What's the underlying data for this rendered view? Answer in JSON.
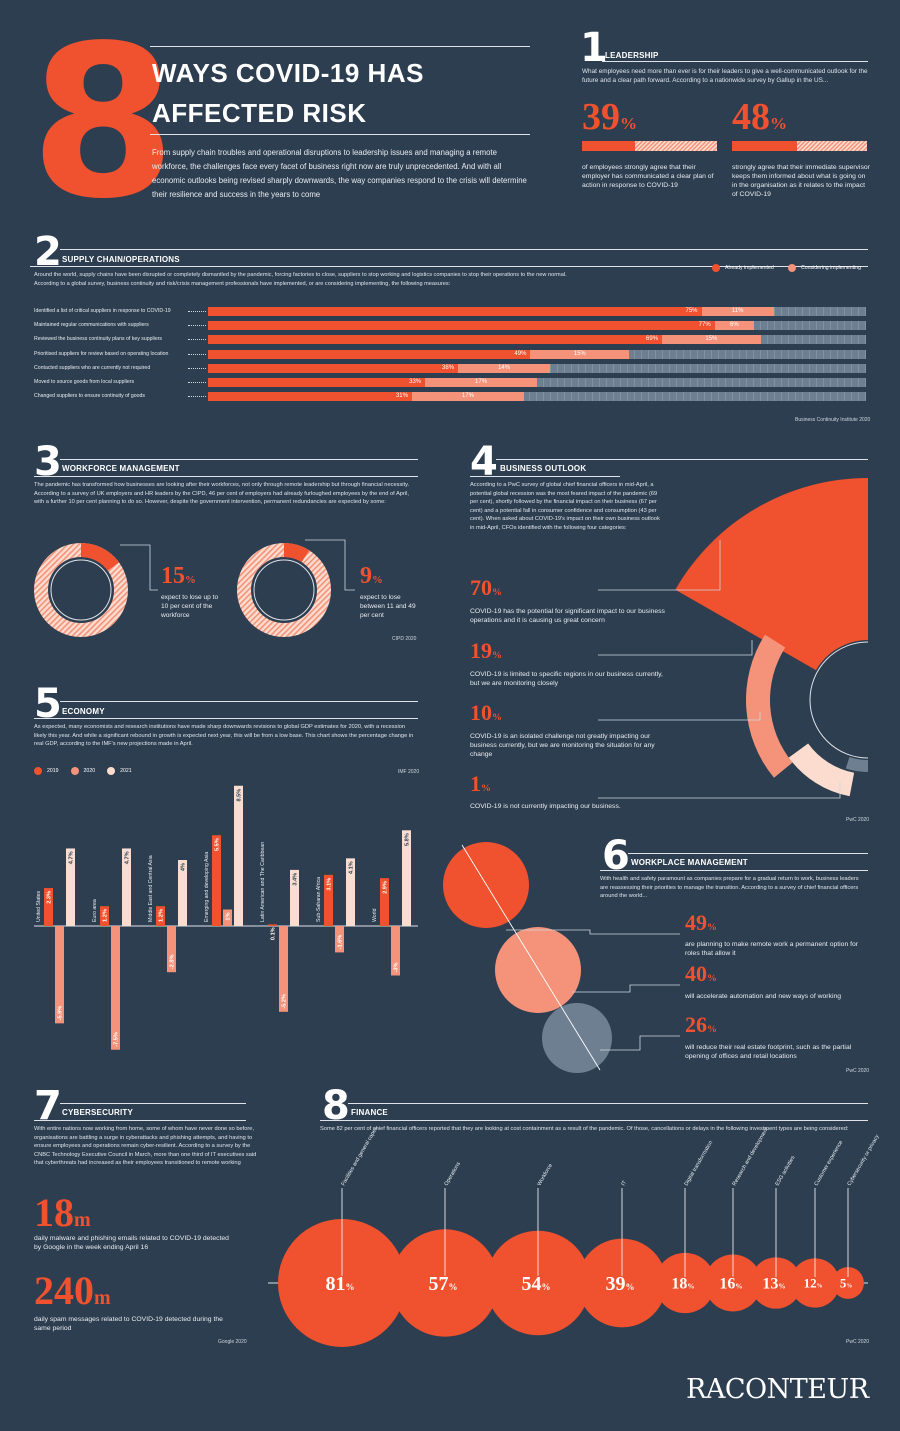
{
  "header": {
    "big_number": "8",
    "title_line1": "WAYS COVID-19 HAS",
    "title_line2": "AFFECTED RISK",
    "intro": "From supply chain troubles and operational disruptions to leadership issues and managing a remote workforce, the challenges face every facet of business right now are truly unprecedented. And with all economic outlooks being revised sharply downwards, the way companies respond to the crisis will determine their resilience and success in the years to come"
  },
  "leadership": {
    "number": "1",
    "title": "LEADERSHIP",
    "text": "What employees need more than ever is for their leaders to give a well-communicated outlook for the future and a clear path forward. According to a nationwide survey by Gallup in the US...",
    "stats": [
      {
        "value": "39",
        "fraction": 0.39,
        "caption": "of employees strongly agree that their employer has communicated a clear plan of action in response to COVID-19"
      },
      {
        "value": "48",
        "fraction": 0.48,
        "caption": "strongly agree that their immediate supervisor keeps them informed about what is going on in the organisation as it relates to the impact of COVID-19"
      }
    ]
  },
  "supply_chain": {
    "number": "2",
    "title": "SUPPLY CHAIN/OPERATIONS",
    "text1": "Around the world, supply chains have been disrupted or completely dismantled by the pandemic, forcing factories to close, suppliers to stop working and logistics companies to stop their operations to the new normal.",
    "text2": "According to a global survey, business continuity and risk/crisis management professionals have implemented, or are considering implementing, the following measures:",
    "legend": [
      "Already implemented",
      "Considering implementing"
    ],
    "source": "Business Continuity Institute 2020",
    "colors": {
      "implemented": "#f0512e",
      "considering": "#f4937a",
      "rest": "#6f7f92"
    }
  },
  "workforce": {
    "number": "3",
    "title": "WORKFORCE MANAGEMENT",
    "text": "The pandemic has transformed how businesses are looking after their workforces, not only through remote leadership but through financial necessity. According to a survey of UK employers and HR leaders by the CIPD, 46 per cent of employers had already furloughed employees by the end of April, with a further 10 per cent planning to do so. However, despite the government intervention, permanent redundancies are expected by some:",
    "stats": [
      {
        "value": "15",
        "fraction": 0.15,
        "caption": "expect to lose up to 10 per cent of the workforce"
      },
      {
        "value": "9",
        "fraction": 0.09,
        "caption": "expect to lose between 11 and 49 per cent"
      }
    ],
    "source": "CIPD 2020"
  },
  "business": {
    "number": "4",
    "title": "BUSINESS OUTLOOK",
    "text": "According to a PwC survey of global chief financial officers in mid-April, a potential global recession was the most feared impact of the pandemic (69 per cent), shortly followed by the financial impact on their business (67 per cent) and a potential fall in consumer confidence and consumption (43 per cent). When asked about COVID-19's impact on their own business outlook in mid-April, CFOs identified with the following four categories:",
    "stats": [
      {
        "value": "70",
        "fraction": 0.7,
        "color": "#f0512e",
        "caption": "COVID-19 has the potential for significant impact to our business operations and it is causing us great concern"
      },
      {
        "value": "19",
        "fraction": 0.19,
        "color": "#f4937a",
        "caption": "COVID-19 is limited to specific regions in our business currently, but we are monitoring closely"
      },
      {
        "value": "10",
        "fraction": 0.1,
        "color": "#fbdccf",
        "caption": "COVID-19 is an isolated challenge not greatly impacting our business currently, but we are monitoring the situation for any change"
      },
      {
        "value": "1",
        "fraction": 0.01,
        "color": "#6f7f92",
        "caption": "COVID-19 is not currently impacting our business."
      }
    ],
    "source": "PwC 2020"
  },
  "economy": {
    "number": "5",
    "title": "ECONOMY",
    "text": "As expected, many economists and research institutions have made sharp downwards revisions to global GDP estimates for 2020, with a recession likely this year. And while a significant rebound in growth is expected next year, this will be from a low base. This chart shows the percentage change in real GDP, according to the IMF's new projections made in April.",
    "source": "IMF 2020",
    "colors": {
      "2019": "#f0512e",
      "2020": "#f4937a",
      "2021": "#fbdccf"
    }
  },
  "chart_data": {
    "type": "bar",
    "categories": [
      "United States",
      "Euro area",
      "Middle East and Central Asia",
      "Emerging and developing Asia",
      "Latin American and The Caribbean",
      "Sub-Saharan Africa",
      "World"
    ],
    "series": [
      {
        "name": "2019",
        "values": [
          2.3,
          1.2,
          1.2,
          5.5,
          0.1,
          3.1,
          2.9
        ],
        "labels": [
          "2.3%",
          "1.2%",
          "1.2%",
          "5.5%",
          "0.1%",
          "3.1%",
          "2.9%"
        ]
      },
      {
        "name": "2020",
        "values": [
          -5.9,
          -7.5,
          -2.8,
          1.0,
          -5.2,
          -1.6,
          -3.0
        ],
        "labels": [
          "-5.9%",
          "-7.5%",
          "-2.8%",
          "1%",
          "-5.2%",
          "-1.6%",
          "-3%"
        ]
      },
      {
        "name": "2021",
        "values": [
          4.7,
          4.7,
          4.0,
          8.5,
          3.4,
          4.1,
          5.8
        ],
        "labels": [
          "4.7%",
          "4.7%",
          "4%",
          "8.5%",
          "3.4%",
          "4.1%",
          "5.8%"
        ]
      }
    ],
    "ylim": [
      -8,
      9
    ]
  },
  "supply_data": [
    {
      "label": "Identified a list of critical suppliers in response to COVID-19",
      "implemented": 75,
      "considering": 11,
      "implemented_label": "75%",
      "considering_label": "11%"
    },
    {
      "label": "Maintained regular communications with suppliers",
      "implemented": 77,
      "considering": 6,
      "implemented_label": "77%",
      "considering_label": "6%"
    },
    {
      "label": "Reviewed the business continuity plans of key suppliers",
      "implemented": 69,
      "considering": 15,
      "implemented_label": "69%",
      "considering_label": "15%"
    },
    {
      "label": "Prioritised suppliers for review based on operating location",
      "implemented": 49,
      "considering": 15,
      "implemented_label": "49%",
      "considering_label": "15%"
    },
    {
      "label": "Contacted suppliers who are currently not required",
      "implemented": 38,
      "considering": 14,
      "implemented_label": "38%",
      "considering_label": "14%"
    },
    {
      "label": "Moved to source goods from local suppliers",
      "implemented": 33,
      "considering": 17,
      "implemented_label": "33%",
      "considering_label": "17%"
    },
    {
      "label": "Changed suppliers to ensure continuity of goods",
      "implemented": 31,
      "considering": 17,
      "implemented_label": "31%",
      "considering_label": "17%"
    }
  ],
  "workplace": {
    "number": "6",
    "title": "WORKPLACE MANAGEMENT",
    "text": "With health and safety paramount as companies prepare for a gradual return to work, business leaders are reassessing their priorities to manage the transition. According to a survey of chief financial officers around the world...",
    "stats": [
      {
        "value": "49",
        "fraction": 0.49,
        "color": "#f0512e",
        "caption": "are planning to make remote work a permanent option for roles that allow it"
      },
      {
        "value": "40",
        "fraction": 0.4,
        "color": "#f4937a",
        "caption": "will accelerate automation and new ways of working"
      },
      {
        "value": "26",
        "fraction": 0.26,
        "color": "#6f7f92",
        "caption": "will reduce their real estate footprint, such as the partial opening of offices and retail locations"
      }
    ],
    "source": "PwC 2020"
  },
  "cyber": {
    "number": "7",
    "title": "CYBERSECURITY",
    "text": "With entire nations now working from home, some of whom have never done so before, organisations are battling a surge in cyberattacks and phishing attempts, and having to ensure employees and operations remain cyber-resilient. According to a survey by the CNBC Technology Executive Council in March, more than one third of IT executives said that cyberthreats had increased as their employees transitioned to remote working",
    "stats": [
      {
        "value": "18",
        "unit": "m",
        "caption": "daily malware and phishing emails related to COVID-19 detected by Google in the week ending April 16"
      },
      {
        "value": "240",
        "unit": "m",
        "caption": "daily spam messages related to COVID-19 detected during the same period"
      }
    ],
    "source": "Google 2020"
  },
  "finance": {
    "number": "8",
    "title": "FINANCE",
    "text": "Some 82 per cent of chief financial officers reported that they are looking at cost containment as a result of the pandemic. Of those, cancellations or delays in the following investment types are being considered:",
    "items": [
      {
        "label": "Facilities and general capex",
        "value": 81
      },
      {
        "label": "Operations",
        "value": 57
      },
      {
        "label": "Workforce",
        "value": 54
      },
      {
        "label": "IT",
        "value": 39
      },
      {
        "label": "Digital transformation",
        "value": 18
      },
      {
        "label": "Research and development",
        "value": 16
      },
      {
        "label": "ESG activities",
        "value": 13
      },
      {
        "label": "Customer experience",
        "value": 12
      },
      {
        "label": "Cybersecurity or privacy",
        "value": 5
      }
    ],
    "source": "PwC 2020"
  },
  "brand": "RACONTEUR",
  "pct": "%"
}
